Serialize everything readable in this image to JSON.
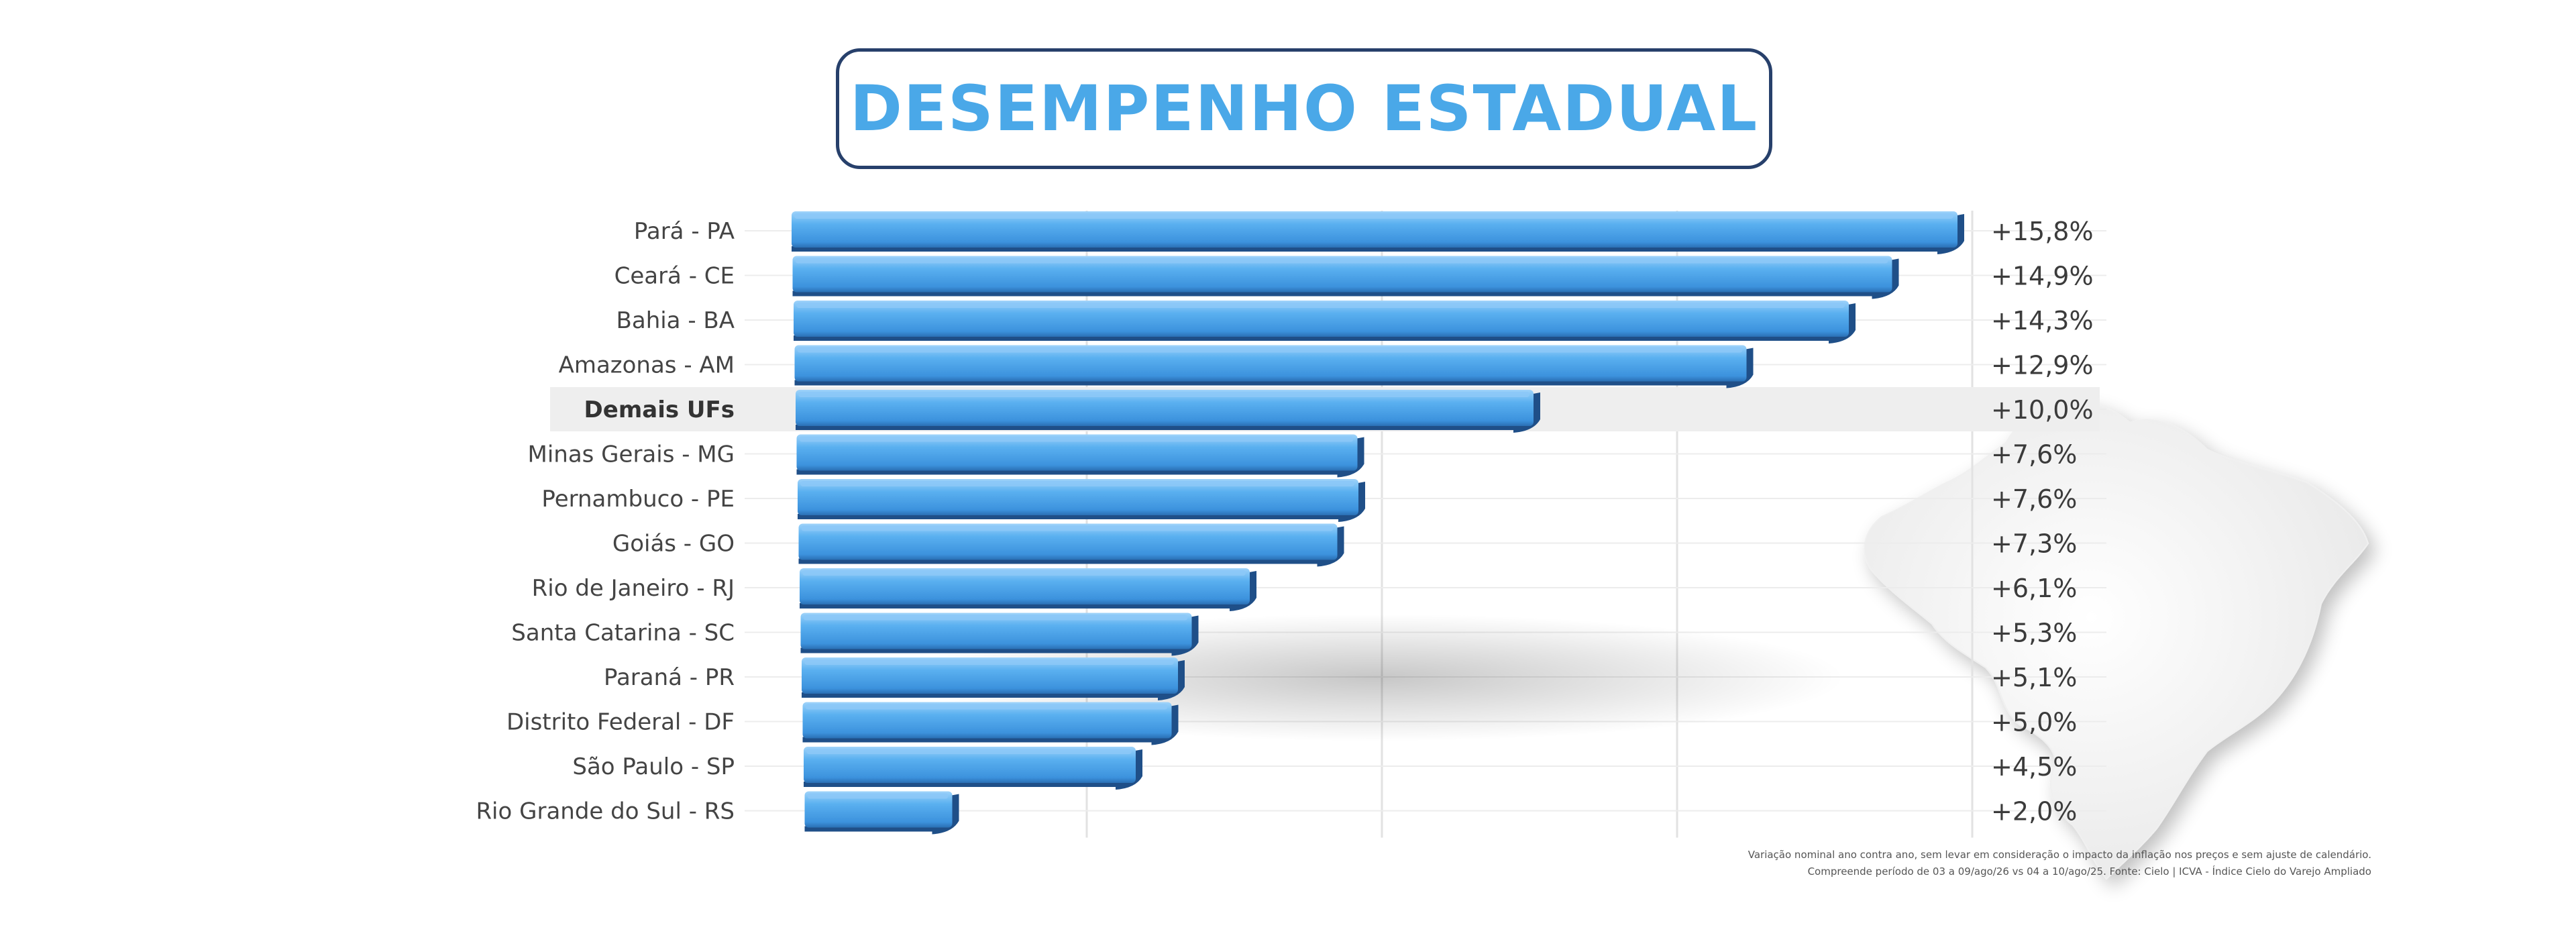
{
  "title": "DESEMPENHO ESTADUAL",
  "colors": {
    "bar": "#4da3ec",
    "bar_light": "#8cc8f7",
    "bar_dark": "#1f4f88",
    "title": "#4aa8e8",
    "title_border": "#27406b",
    "highlight_row": "#eeeeee",
    "grid": "#e2e2e2"
  },
  "chart_data": {
    "type": "bar",
    "orientation": "horizontal",
    "categories": [
      "Pará - PA",
      "Ceará - CE",
      "Bahia - BA",
      "Amazonas - AM",
      "Demais UFs",
      "Minas Gerais - MG",
      "Pernambuco - PE",
      "Goiás - GO",
      "Rio de Janeiro - RJ",
      "Santa Catarina - SC",
      "Paraná - PR",
      "Distrito Federal - DF",
      "São Paulo - SP",
      "Rio Grande do Sul - RS"
    ],
    "values": [
      15.8,
      14.9,
      14.3,
      12.9,
      10.0,
      7.6,
      7.6,
      7.3,
      6.1,
      5.3,
      5.1,
      5.0,
      4.5,
      2.0
    ],
    "value_labels": [
      "+15,8%",
      "+14,9%",
      "+14,3%",
      "+12,9%",
      "+10,0%",
      "+7,6%",
      "+7,6%",
      "+7,3%",
      "+6,1%",
      "+5,3%",
      "+5,1%",
      "+5,0%",
      "+4,5%",
      "+2,0%"
    ],
    "highlight_category": "Demais UFs",
    "xlim": [
      0,
      16
    ],
    "grid": true,
    "legend": "none"
  },
  "footnote": {
    "line1": "Variação nominal ano contra ano, sem levar em consideração o impacto da inflação nos preços e sem ajuste de calendário.",
    "line2": "Compreende período de 03 a 09/ago/26 vs 04 a 10/ago/25. Fonte: Cielo | ICVA - Índice Cielo do Varejo Ampliado"
  },
  "map_icon": "brazil-map-icon"
}
